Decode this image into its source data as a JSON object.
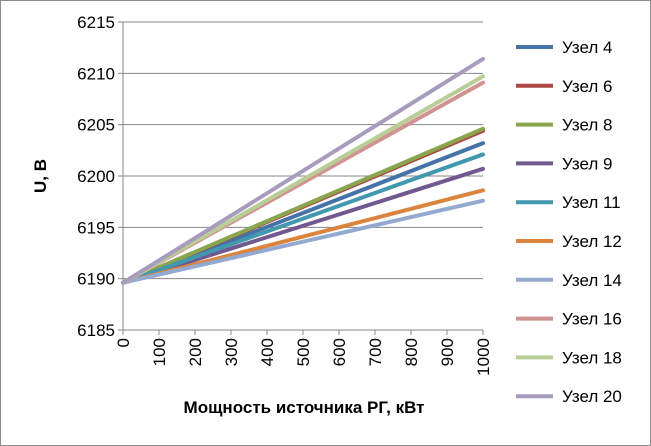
{
  "chart_data": {
    "type": "line",
    "xlabel": "Мощность источника РГ, кВт",
    "ylabel": "U, В",
    "xlim": [
      0,
      1000
    ],
    "ylim": [
      6185,
      6215
    ],
    "x_ticks": [
      "0",
      "100",
      "200",
      "300",
      "400",
      "500",
      "600",
      "700",
      "800",
      "900",
      "1000"
    ],
    "y_ticks": [
      "6185",
      "6190",
      "6195",
      "6200",
      "6205",
      "6210",
      "6215"
    ],
    "grid": "horizontal",
    "legend_position": "right",
    "x": [
      0,
      1000
    ],
    "series": [
      {
        "name": "Узел 4",
        "color": "#4572a7",
        "values": [
          6189.6,
          6203.2
        ]
      },
      {
        "name": "Узел 6",
        "color": "#aa4643",
        "values": [
          6189.6,
          6204.4
        ]
      },
      {
        "name": "Узел 8",
        "color": "#89a54e",
        "values": [
          6189.6,
          6204.6
        ]
      },
      {
        "name": "Узел 9",
        "color": "#71588f",
        "values": [
          6189.6,
          6200.7
        ]
      },
      {
        "name": "Узел 11",
        "color": "#4198af",
        "values": [
          6189.6,
          6202.1
        ]
      },
      {
        "name": "Узел 12",
        "color": "#db843d",
        "values": [
          6189.6,
          6198.6
        ]
      },
      {
        "name": "Узел 14",
        "color": "#93a9cf",
        "values": [
          6189.6,
          6197.6
        ]
      },
      {
        "name": "Узел 16",
        "color": "#d19392",
        "values": [
          6189.6,
          6209.1
        ]
      },
      {
        "name": "Узел 18",
        "color": "#b9cd96",
        "values": [
          6189.6,
          6209.7
        ]
      },
      {
        "name": "Узел 20",
        "color": "#a99bbd",
        "values": [
          6189.6,
          6211.4
        ]
      }
    ]
  }
}
